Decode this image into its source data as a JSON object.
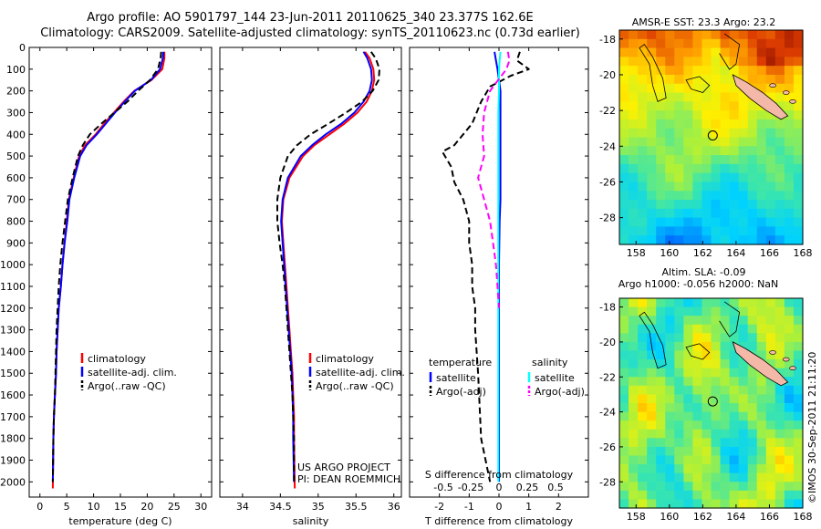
{
  "header": {
    "line1": "Argo profile: AO 5901797_144 23-Jun-2011 20110625_340 23.377S 162.6E",
    "line2": "Climatology: CARS2009. Satellite-adjusted climatology: synTS_20110623.nc (0.73d earlier)"
  },
  "chart_data": [
    {
      "type": "line",
      "id": "temperature-profile",
      "xlabel": "temperature (deg C)",
      "xlim": [
        -2,
        32
      ],
      "xticks": [
        0,
        5,
        10,
        15,
        20,
        25,
        30
      ],
      "ylim": [
        0,
        2070
      ],
      "yticks": [
        0,
        100,
        200,
        300,
        400,
        500,
        600,
        700,
        800,
        900,
        1000,
        1100,
        1200,
        1300,
        1400,
        1500,
        1600,
        1700,
        1800,
        1900,
        2000
      ],
      "legend": [
        "climatology",
        "satellite-adj. clim.",
        "Argo(..raw -QC)"
      ],
      "series": [
        {
          "name": "climatology",
          "color": "#ff0000",
          "style": "solid",
          "x": [
            23.2,
            23.2,
            22.8,
            20.8,
            17.6,
            15.6,
            13.8,
            12.0,
            10.4,
            8.4,
            7.3,
            6.3,
            5.4,
            5.0,
            4.6,
            4.2,
            3.9,
            3.5,
            3.3,
            3.1,
            3.0,
            2.8,
            2.6,
            2.5,
            2.4
          ],
          "y": [
            20,
            50,
            100,
            150,
            200,
            250,
            300,
            350,
            400,
            450,
            500,
            600,
            700,
            800,
            900,
            1000,
            1100,
            1200,
            1300,
            1400,
            1500,
            1600,
            1700,
            1800,
            2030
          ]
        },
        {
          "name": "satellite-adj. clim.",
          "color": "#0000ff",
          "style": "solid",
          "x": [
            23.0,
            22.9,
            22.4,
            20.7,
            17.7,
            15.8,
            14.0,
            12.3,
            10.6,
            8.7,
            7.5,
            6.4,
            5.5,
            5.1,
            4.6,
            4.2,
            3.9,
            3.5,
            3.3,
            3.1,
            3.0,
            2.8,
            2.6,
            2.5,
            2.4
          ],
          "y": [
            20,
            50,
            100,
            150,
            200,
            250,
            300,
            350,
            400,
            450,
            500,
            600,
            700,
            800,
            900,
            1000,
            1100,
            1200,
            1300,
            1400,
            1500,
            1600,
            1700,
            1800,
            2000
          ]
        },
        {
          "name": "Argo(..raw -QC)",
          "color": "#000000",
          "style": "dashed",
          "x": [
            22.6,
            22.5,
            22.0,
            20.5,
            18.3,
            16.3,
            13.9,
            11.5,
            9.3,
            8.0,
            7.1,
            6.1,
            5.2,
            4.7,
            4.2,
            3.8,
            3.5,
            3.3,
            3.1,
            3.0,
            2.9,
            2.8,
            2.6,
            2.5,
            2.4
          ],
          "y": [
            20,
            50,
            100,
            150,
            200,
            250,
            300,
            350,
            400,
            450,
            500,
            600,
            700,
            800,
            900,
            1000,
            1100,
            1200,
            1300,
            1400,
            1500,
            1600,
            1700,
            1800,
            2000
          ]
        }
      ]
    },
    {
      "type": "line",
      "id": "salinity-profile",
      "xlabel": "salinity",
      "xlim": [
        33.7,
        36.1
      ],
      "xticks": [
        34,
        34.5,
        35,
        35.5,
        36
      ],
      "ylim": [
        0,
        2070
      ],
      "legend": [
        "climatology",
        "satellite-adj. clim.",
        "Argo(..raw -QC)"
      ],
      "annotation": [
        "US ARGO PROJECT",
        "PI: DEAN ROEMMICH"
      ],
      "series": [
        {
          "name": "climatology",
          "color": "#ff0000",
          "style": "solid",
          "x": [
            35.62,
            35.68,
            35.73,
            35.74,
            35.71,
            35.64,
            35.52,
            35.35,
            35.15,
            34.95,
            34.8,
            34.62,
            34.54,
            34.52,
            34.54,
            34.56,
            34.58,
            34.6,
            34.62,
            34.64,
            34.66,
            34.67,
            34.68,
            34.68,
            34.69
          ],
          "y": [
            20,
            50,
            100,
            150,
            200,
            250,
            300,
            350,
            400,
            450,
            500,
            600,
            700,
            800,
            900,
            1000,
            1100,
            1200,
            1300,
            1400,
            1500,
            1600,
            1700,
            1800,
            2030
          ]
        },
        {
          "name": "satellite-adj. clim.",
          "color": "#0000ff",
          "style": "solid",
          "x": [
            35.6,
            35.65,
            35.7,
            35.71,
            35.68,
            35.6,
            35.48,
            35.31,
            35.1,
            34.92,
            34.77,
            34.6,
            34.53,
            34.51,
            34.53,
            34.55,
            34.57,
            34.59,
            34.61,
            34.63,
            34.65,
            34.66,
            34.67,
            34.67,
            34.68
          ],
          "y": [
            20,
            50,
            100,
            150,
            200,
            250,
            300,
            350,
            400,
            450,
            500,
            600,
            700,
            800,
            900,
            1000,
            1100,
            1200,
            1300,
            1400,
            1500,
            1600,
            1700,
            1800,
            2000
          ]
        },
        {
          "name": "Argo(..raw -QC)",
          "color": "#000000",
          "style": "dashed",
          "x": [
            35.7,
            35.76,
            35.81,
            35.8,
            35.72,
            35.58,
            35.37,
            35.14,
            34.9,
            34.72,
            34.6,
            34.5,
            34.46,
            34.46,
            34.49,
            34.53,
            34.56,
            34.58,
            34.6,
            34.62,
            34.64,
            34.66,
            34.67,
            34.68,
            34.68
          ],
          "y": [
            20,
            50,
            100,
            150,
            200,
            250,
            300,
            350,
            400,
            450,
            500,
            600,
            700,
            800,
            900,
            1000,
            1100,
            1200,
            1300,
            1400,
            1500,
            1600,
            1700,
            1800,
            2000
          ]
        }
      ]
    },
    {
      "type": "line",
      "id": "difference-profile",
      "xlabel": "T difference from climatology",
      "xlim": [
        -3,
        3
      ],
      "xticks": [
        -2,
        -1,
        0,
        1,
        2
      ],
      "xticklabels": [
        "-2",
        "-1",
        "0",
        "1",
        "2"
      ],
      "top_xlabel": "S difference from climatology",
      "top_xticklabels": [
        "-0.5",
        "-0.25",
        "0",
        "0.25",
        "0.5"
      ],
      "ylim": [
        0,
        2070
      ],
      "legend_titles": [
        "temperature",
        "salinity"
      ],
      "legend": [
        "satellite",
        "Argo(-adj)",
        "satellite",
        "Argo(-adj)"
      ],
      "series": [
        {
          "name": "satellite",
          "group": "temperature",
          "color": "#0000ff",
          "style": "solid",
          "x": [
            -0.15,
            -0.1,
            -0.05,
            0.0,
            0.05,
            0.05,
            0.05,
            0.05,
            0.05,
            0.05,
            0.02,
            0.0,
            0.0,
            0.0,
            0.0,
            0.0,
            0.0,
            0.0
          ],
          "y": [
            20,
            60,
            100,
            150,
            200,
            300,
            400,
            500,
            600,
            700,
            800,
            1000,
            1200,
            1400,
            1600,
            1800,
            1900,
            2000
          ]
        },
        {
          "name": "Argo(-adj)",
          "group": "temperature",
          "color": "#000000",
          "style": "dashed",
          "x": [
            0.7,
            0.6,
            1.0,
            0.4,
            -0.3,
            -0.6,
            -0.9,
            -1.5,
            -1.9,
            -1.6,
            -1.5,
            -1.2,
            -1.0,
            -1.0,
            -0.9,
            -0.9,
            -0.8,
            -0.8,
            -0.7,
            -0.6,
            -0.3
          ],
          "y": [
            20,
            60,
            100,
            130,
            180,
            250,
            350,
            450,
            480,
            550,
            620,
            700,
            800,
            900,
            1000,
            1100,
            1200,
            1300,
            1500,
            1800,
            2000
          ]
        },
        {
          "name": "satellite",
          "group": "salinity",
          "color": "#00ffff",
          "style": "solid",
          "x": [
            0.05,
            0.02,
            0.0,
            0.0,
            -0.02,
            -0.02,
            -0.02,
            -0.02,
            -0.02,
            -0.02,
            -0.02,
            -0.02,
            -0.02,
            -0.02,
            -0.02,
            -0.02
          ],
          "y": [
            20,
            60,
            100,
            200,
            300,
            400,
            500,
            600,
            700,
            800,
            1000,
            1200,
            1400,
            1600,
            1800,
            2000
          ]
        },
        {
          "name": "Argo(-adj)",
          "group": "salinity",
          "color": "#ff00ff",
          "style": "dashed",
          "x": [
            0.3,
            0.35,
            0.25,
            -0.3,
            -0.5,
            -0.55,
            -0.5,
            -0.6,
            -0.7,
            -0.5,
            -0.3,
            -0.2,
            -0.1,
            -0.05,
            0.0
          ],
          "y": [
            20,
            60,
            100,
            200,
            300,
            400,
            500,
            550,
            600,
            700,
            800,
            900,
            1000,
            1100,
            1200
          ]
        }
      ]
    },
    {
      "type": "heatmap",
      "id": "sst-map",
      "title": "AMSR-E SST: 23.3 Argo: 23.2",
      "xlim": [
        157,
        168
      ],
      "ylim": [
        -29.5,
        -17.5
      ],
      "xticks": [
        158,
        160,
        162,
        164,
        166,
        168
      ],
      "yticks": [
        -18,
        -20,
        -22,
        -24,
        -26,
        -28
      ],
      "marker": {
        "lon": 162.6,
        "lat": -23.4
      }
    },
    {
      "type": "heatmap",
      "id": "sla-map",
      "title": "Altim. SLA: -0.09",
      "subtitle": "Argo h1000: -0.056 h2000: NaN",
      "xlim": [
        157,
        168
      ],
      "ylim": [
        -29.5,
        -17.5
      ],
      "xticks": [
        158,
        160,
        162,
        164,
        166,
        168
      ],
      "yticks": [
        -18,
        -20,
        -22,
        -24,
        -26,
        -28
      ],
      "marker": {
        "lon": 162.6,
        "lat": -23.4
      }
    }
  ],
  "footer": {
    "credit": "©IMOS 30-Sep-2011 21:11:20"
  }
}
